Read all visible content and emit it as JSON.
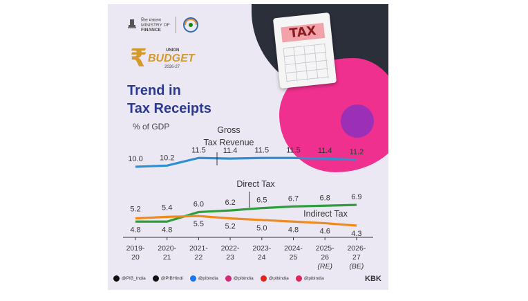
{
  "header": {
    "ministry_hindi": "वित्त मंत्रालय",
    "ministry_line1": "MINISTRY OF",
    "ministry_line2": "FINANCE",
    "budget_union": "UNION",
    "budget_word": "BUDGET",
    "budget_year": "2026-27"
  },
  "illustration": {
    "sheet_label": "TAX"
  },
  "chart_data": {
    "type": "line",
    "title": "Trend in Tax Receipts",
    "ylabel": "% of GDP",
    "categories": [
      "2019-20",
      "2020-21",
      "2021-22",
      "2022-23",
      "2023-24",
      "2024-25",
      "2025-26 (RE)",
      "2026-27 (BE)"
    ],
    "category_lines": [
      [
        "2019-",
        "20"
      ],
      [
        "2020-",
        "21"
      ],
      [
        "2021-",
        "22"
      ],
      [
        "2022-",
        "23"
      ],
      [
        "2023-",
        "24"
      ],
      [
        "2024-",
        "25"
      ],
      [
        "2025-",
        "26",
        "(RE)"
      ],
      [
        "2026-",
        "27",
        "(BE)"
      ]
    ],
    "series": [
      {
        "name": "Gross Tax Revenue",
        "color": "#2f8fd1",
        "values": [
          10.0,
          10.2,
          11.5,
          11.4,
          11.5,
          11.5,
          11.4,
          11.2
        ],
        "labels": [
          "10.0",
          "10.2",
          "11.5",
          "11.4",
          "11.5",
          "11.5",
          "11.4",
          "11.2"
        ]
      },
      {
        "name": "Direct Tax",
        "color": "#2e9e3a",
        "values": [
          4.8,
          4.8,
          6.0,
          6.2,
          6.5,
          6.7,
          6.8,
          6.9
        ],
        "labels": [
          "4.8",
          "4.8",
          "6.0",
          "6.2",
          "6.5",
          "6.7",
          "6.8",
          "6.9"
        ]
      },
      {
        "name": "Indirect Tax",
        "color": "#ef8a1e",
        "values": [
          5.2,
          5.4,
          5.5,
          5.2,
          5.0,
          4.8,
          4.6,
          4.3
        ],
        "labels": [
          "5.2",
          "5.4",
          "5.5",
          "5.2",
          "5.0",
          "4.8",
          "4.6",
          "4.3"
        ]
      }
    ],
    "series_label_lines": [
      [
        "Gross",
        "Tax Revenue"
      ],
      [
        "Direct Tax"
      ],
      [
        "Indirect Tax"
      ]
    ]
  },
  "footer": {
    "socials": [
      {
        "icon": "x-icon",
        "handle": "@PIB_India",
        "color": "#111111"
      },
      {
        "icon": "x-icon",
        "handle": "@PIBHindi",
        "color": "#111111"
      },
      {
        "icon": "facebook-icon",
        "handle": "@pibindia",
        "color": "#1877f2"
      },
      {
        "icon": "instagram-icon",
        "handle": "@pibindia",
        "color": "#d62976"
      },
      {
        "icon": "youtube-icon",
        "handle": "@pibindia",
        "color": "#e62117"
      },
      {
        "icon": "koo-icon",
        "handle": "@pibindia",
        "color": "#e0245e"
      }
    ],
    "credit": "KBK"
  }
}
